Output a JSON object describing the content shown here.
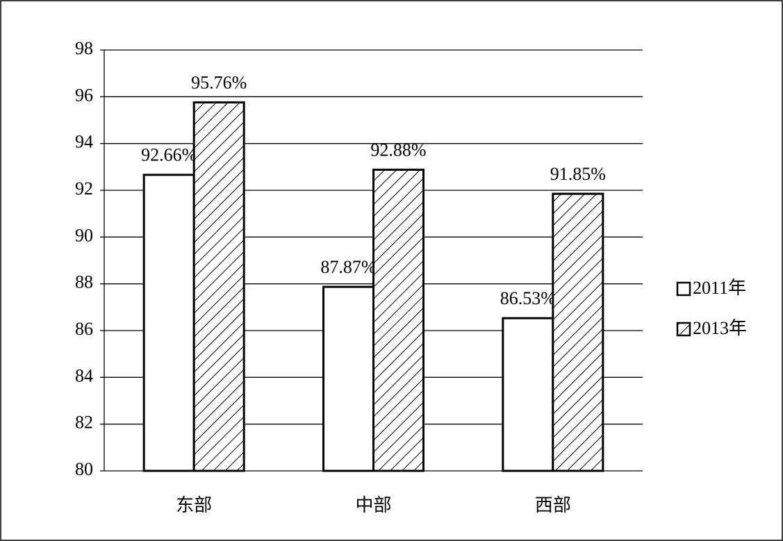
{
  "chart_data": {
    "type": "bar",
    "categories": [
      "东部",
      "中部",
      "西部"
    ],
    "series": [
      {
        "name": "2011年",
        "color": "#ffffff",
        "hatch": false,
        "values": [
          92.66,
          87.87,
          86.53
        ],
        "value_labels": [
          "92.66%",
          "87.87%",
          "86.53%"
        ]
      },
      {
        "name": "2013年",
        "color": "#ffffff",
        "hatch": true,
        "values": [
          95.76,
          92.88,
          91.85
        ],
        "value_labels": [
          "95.76%",
          "92.88%",
          "91.85%"
        ]
      }
    ],
    "ylim": [
      80,
      98
    ],
    "yticks": [
      80,
      82,
      84,
      86,
      88,
      90,
      92,
      94,
      96,
      98
    ],
    "grid": true,
    "legend": "right"
  }
}
